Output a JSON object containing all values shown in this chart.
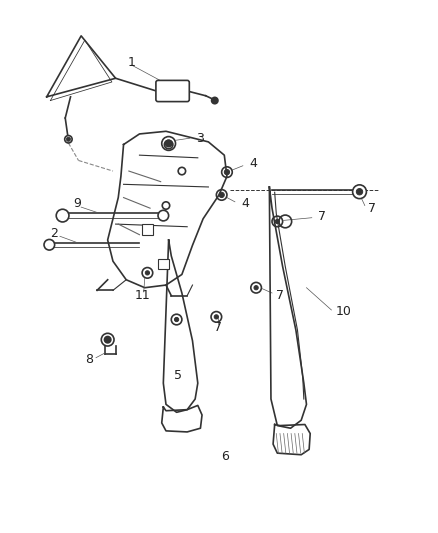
{
  "background_color": "#ffffff",
  "line_color": "#333333",
  "label_color": "#222222",
  "figsize": [
    4.38,
    5.33
  ],
  "dpi": 100,
  "dashed_line": {
    "x": [
      3.7,
      6.5
    ],
    "y": [
      6.45,
      6.45
    ]
  }
}
